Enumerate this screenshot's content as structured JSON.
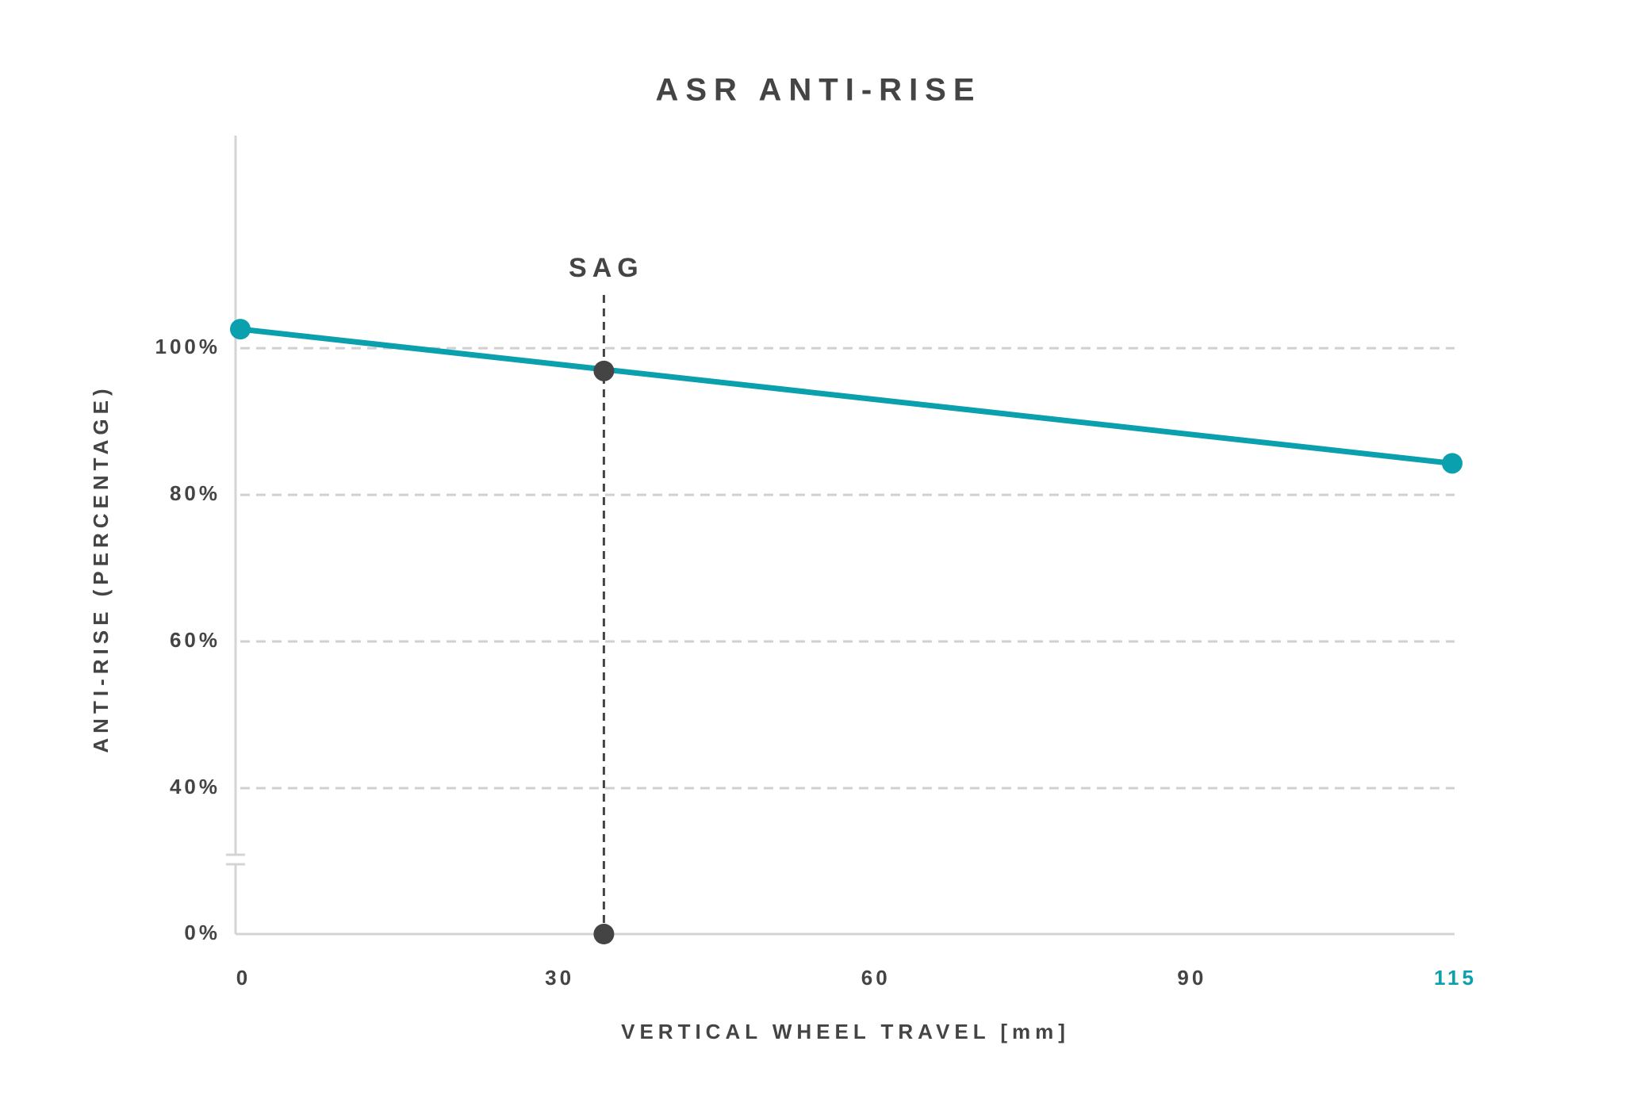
{
  "chart_data": {
    "type": "line",
    "title": "ASR ANTI-RISE",
    "x_label": "VERTICAL WHEEL TRAVEL [mm]",
    "y_label": "ANTI-RISE (PERCENTAGE)",
    "x": [
      0,
      115
    ],
    "series": [
      {
        "color": "#0aa0ad",
        "values": [
          102.6,
          84.3
        ]
      }
    ],
    "xlim": [
      0,
      115
    ],
    "xticks": [
      0,
      30,
      60,
      90,
      115
    ],
    "ylim": [
      0,
      129
    ],
    "yticks": [
      {
        "value": 0,
        "label": "0%"
      },
      {
        "value": 40,
        "label": "40%"
      },
      {
        "value": 60,
        "label": "60%"
      },
      {
        "value": 80,
        "label": "80%"
      },
      {
        "value": 100,
        "label": "100%"
      }
    ],
    "y_break": [
      0,
      40
    ],
    "grid": true,
    "sag": {
      "label": "SAG",
      "x": 34.5,
      "y": 96.9,
      "color": "#444444"
    }
  }
}
